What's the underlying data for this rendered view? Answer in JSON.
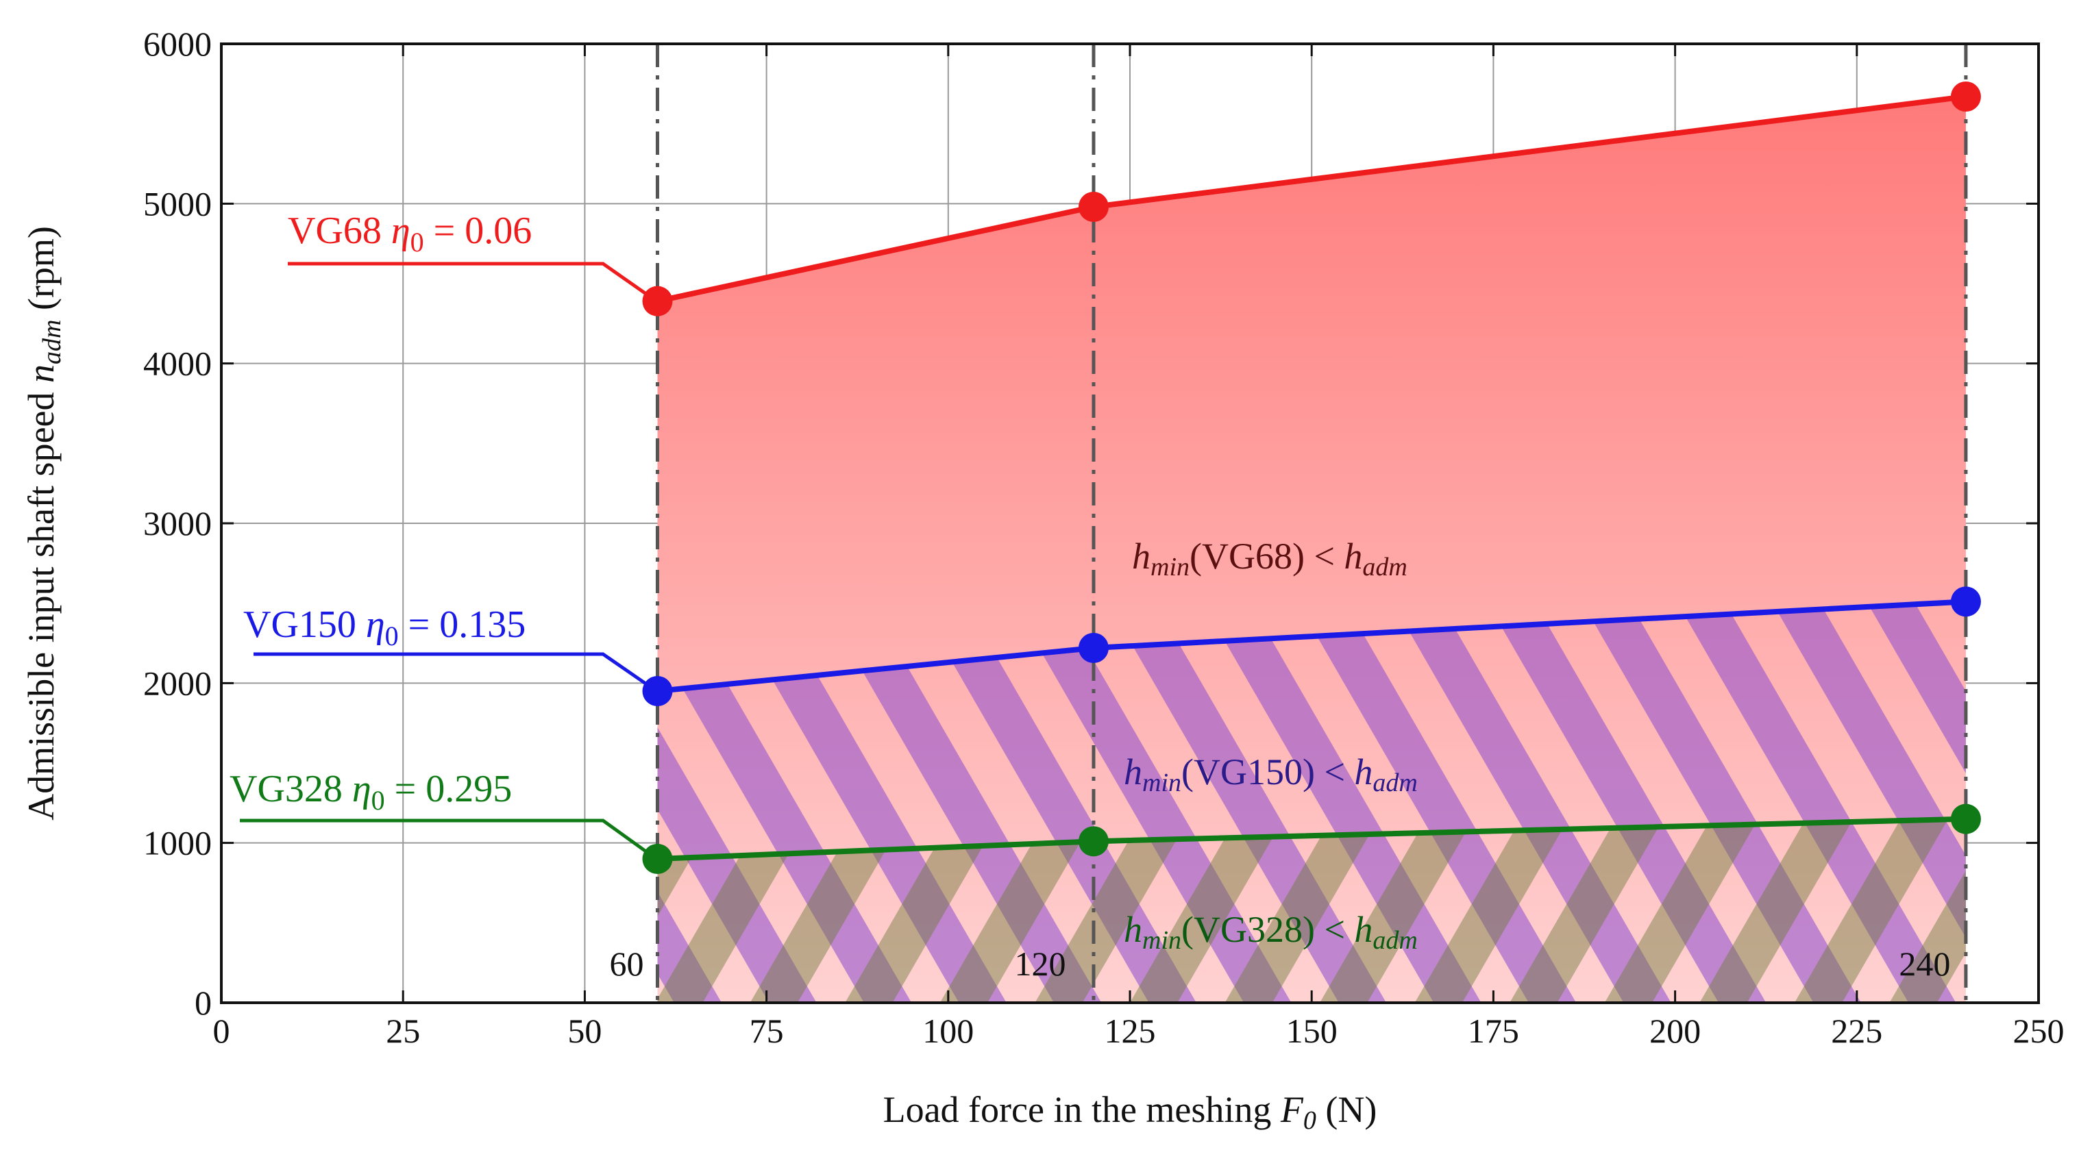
{
  "chart_data": {
    "type": "line",
    "title": "",
    "xlabel": {
      "prefix": "Load force in the meshing ",
      "symbol": "F",
      "sub": "0",
      "suffix": " (N)"
    },
    "ylabel": {
      "prefix": "Admissible input shaft speed ",
      "symbol": "n",
      "sub": "adm",
      "suffix": " (rpm)"
    },
    "xlim": [
      0,
      250
    ],
    "ylim": [
      0,
      6000
    ],
    "xticks": [
      0,
      25,
      50,
      75,
      100,
      125,
      150,
      175,
      200,
      225,
      250
    ],
    "yticks": [
      0,
      1000,
      2000,
      3000,
      4000,
      5000,
      6000
    ],
    "grid": true,
    "x": [
      60,
      120,
      240
    ],
    "vertical_markers": [
      {
        "x": 60,
        "label": "60"
      },
      {
        "x": 120,
        "label": "120"
      },
      {
        "x": 240,
        "label": "240"
      }
    ],
    "series": [
      {
        "name": "VG68",
        "eta": "0.06",
        "color": "#ee1c1c",
        "values": [
          4390,
          4980,
          5670
        ],
        "label_prefix": "VG68 ",
        "label_symbol": "η",
        "label_sub": "0",
        "label_suffix": " = 0.06"
      },
      {
        "name": "VG150",
        "eta": "0.135",
        "color": "#1a1ae6",
        "values": [
          1950,
          2220,
          2510
        ],
        "label_prefix": "VG150 ",
        "label_symbol": "η",
        "label_sub": "0",
        "label_suffix": " = 0.135"
      },
      {
        "name": "VG328",
        "eta": "0.295",
        "color": "#0f7a16",
        "values": [
          900,
          1010,
          1150
        ],
        "label_prefix": "VG328 ",
        "label_symbol": "η",
        "label_sub": "0",
        "label_suffix": " = 0.295"
      }
    ],
    "region_labels": [
      {
        "name": "VG68",
        "color": "#5a1010",
        "symbol": "h",
        "sub1": "min",
        "mid": "(VG68) < ",
        "sub2": "adm"
      },
      {
        "name": "VG150",
        "color": "#2a1a8a",
        "symbol": "h",
        "sub1": "min",
        "mid": "(VG150) < ",
        "sub2": "adm"
      },
      {
        "name": "VG328",
        "color": "#0a5a10",
        "symbol": "h",
        "sub1": "min",
        "mid": "(VG328) < ",
        "sub2": "adm"
      }
    ]
  }
}
